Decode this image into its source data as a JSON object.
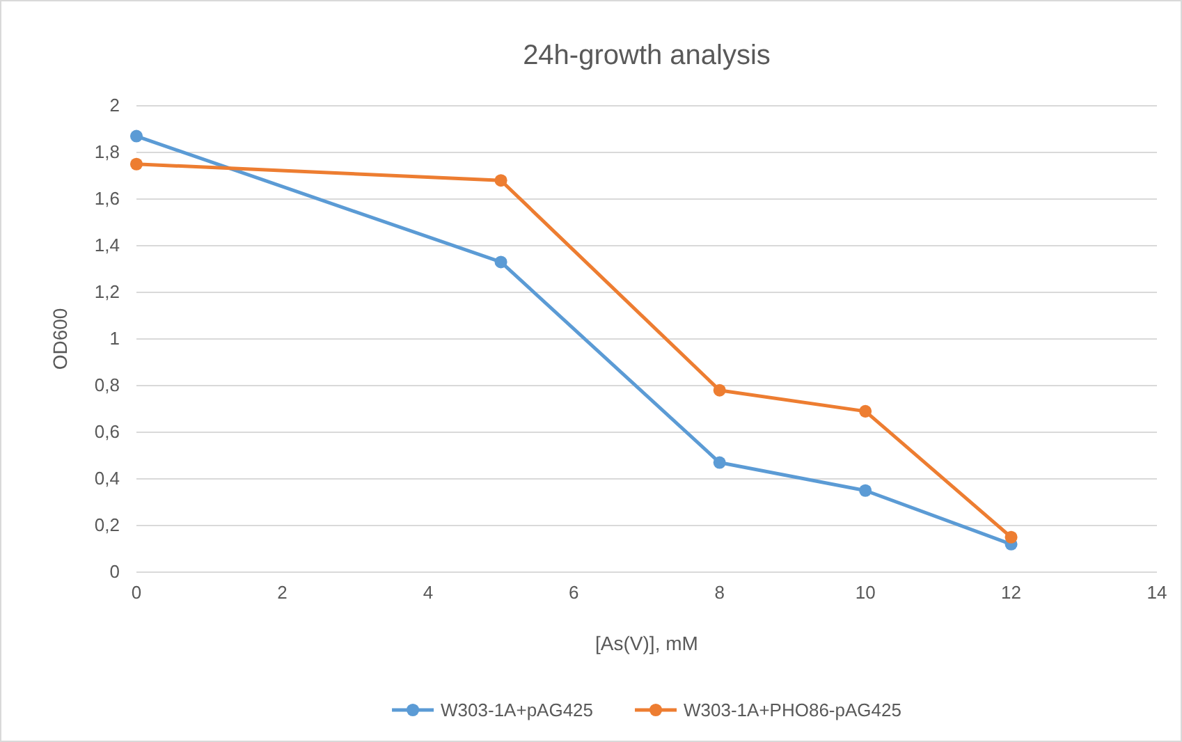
{
  "chart_data": {
    "type": "line",
    "title": "24h-growth analysis",
    "xlabel": "[As(V)], mM",
    "ylabel": "OD600",
    "x": [
      0,
      5,
      8,
      10,
      12
    ],
    "series": [
      {
        "name": "W303-1A+pAG425",
        "color": "#5b9bd5",
        "values": [
          1.87,
          1.33,
          0.47,
          0.35,
          0.12
        ]
      },
      {
        "name": "W303-1A+PHO86-pAG425",
        "color": "#ed7d31",
        "values": [
          1.75,
          1.68,
          0.78,
          0.69,
          0.15
        ]
      }
    ],
    "xlim": [
      0,
      14
    ],
    "xticks": [
      0,
      2,
      4,
      6,
      8,
      10,
      12,
      14
    ],
    "ylim": [
      0,
      2
    ],
    "yticks": [
      0,
      {
        "value": 0.2,
        "label": "0,2"
      },
      {
        "value": 0.4,
        "label": "0,4"
      },
      {
        "value": 0.6,
        "label": "0,6"
      },
      {
        "value": 0.8,
        "label": "0,8"
      },
      1,
      {
        "value": 1.2,
        "label": "1,2"
      },
      {
        "value": 1.4,
        "label": "1,4"
      },
      {
        "value": 1.6,
        "label": "1,6"
      },
      {
        "value": 1.8,
        "label": "1,8"
      },
      2
    ],
    "grid": "y",
    "legend": "bottom",
    "marker": "circle",
    "line_style": "solid"
  }
}
